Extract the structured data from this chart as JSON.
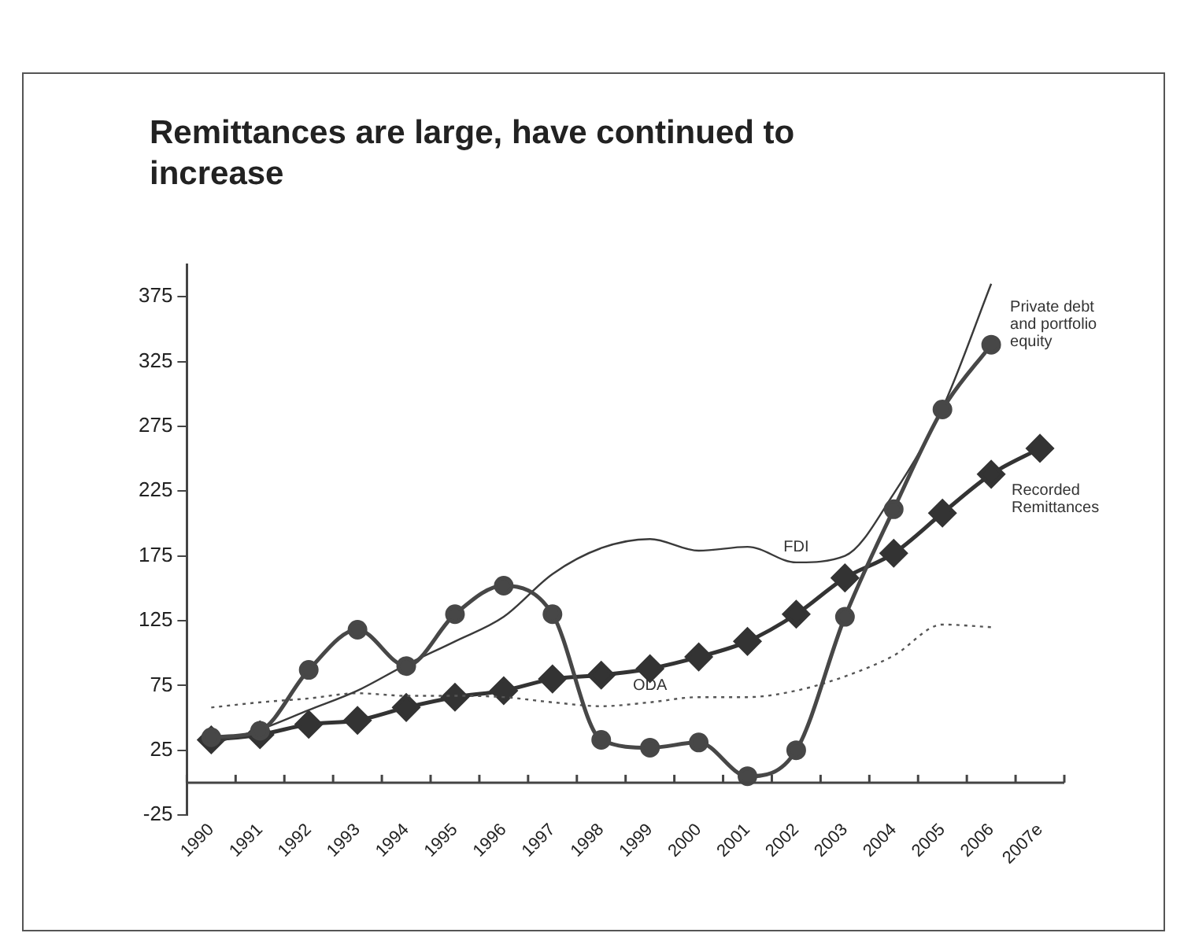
{
  "chart_data": {
    "type": "line",
    "title": "Remittances are large, have continued to increase",
    "categories": [
      "1990",
      "1991",
      "1992",
      "1993",
      "1994",
      "1995",
      "1996",
      "1997",
      "1998",
      "1999",
      "2000",
      "2001",
      "2002",
      "2003",
      "2004",
      "2005",
      "2006",
      "2007e"
    ],
    "ylim": [
      -25,
      400
    ],
    "yticks": [
      -25,
      25,
      75,
      125,
      175,
      225,
      275,
      325,
      375
    ],
    "grid": false,
    "legend": false,
    "series": [
      {
        "name": "Private debt and portfolio equity",
        "color": "#474747",
        "marker": "circle",
        "line_style": "solid",
        "values": [
          35,
          40,
          87,
          118,
          90,
          130,
          152,
          130,
          33,
          27,
          31,
          5,
          25,
          128,
          211,
          288,
          338,
          null
        ]
      },
      {
        "name": "FDI",
        "color": "#3a3a3a",
        "marker": "none",
        "line_style": "solid",
        "values": [
          30,
          41,
          56,
          71,
          91,
          109,
          128,
          161,
          181,
          188,
          179,
          182,
          170,
          175,
          223,
          289,
          385,
          null
        ]
      },
      {
        "name": "ODA",
        "color": "#555555",
        "marker": "none",
        "line_style": "dotted",
        "values": [
          58,
          62,
          65,
          69,
          67,
          67,
          66,
          62,
          59,
          62,
          66,
          66,
          71,
          82,
          98,
          122,
          120,
          null
        ]
      },
      {
        "name": "Recorded Remittances",
        "color": "#333333",
        "marker": "diamond",
        "line_style": "solid",
        "values": [
          33,
          37,
          45,
          48,
          58,
          66,
          71,
          80,
          83,
          88,
          97,
          109,
          130,
          158,
          177,
          208,
          238,
          258
        ]
      }
    ]
  }
}
